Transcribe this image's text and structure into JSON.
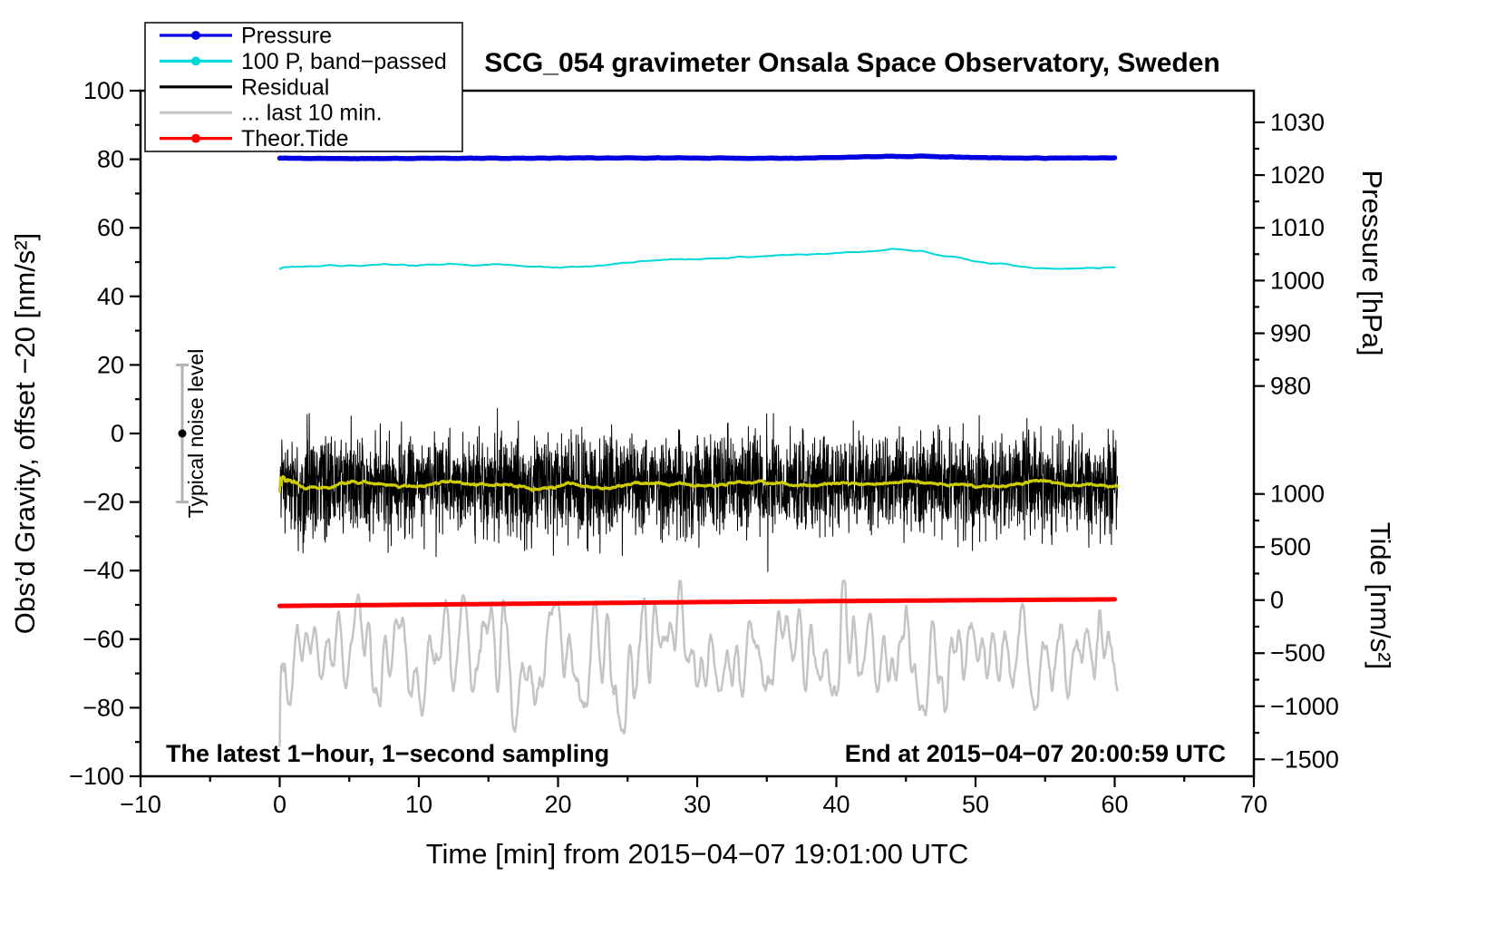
{
  "title": "SCG_054 gravimeter Onsala Space Observatory, Sweden",
  "legend": [
    {
      "label": "Pressure",
      "color": "#0000e0",
      "dot": true
    },
    {
      "label": "100 P, band−passed",
      "color": "#00d8d8",
      "dot": true
    },
    {
      "label": "Residual",
      "color": "#000000",
      "dot": false
    },
    {
      "label": "... last 10 min.",
      "color": "#c4c4c4",
      "dot": false
    },
    {
      "label": "Theor.Tide",
      "color": "#ff0000",
      "dot": true
    }
  ],
  "chart_data": {
    "type": "line",
    "title": "SCG_054 gravimeter Onsala Space Observatory, Sweden",
    "xlabel": "Time [min] from 2015−04−07 19:01:00 UTC",
    "annotations": {
      "bottom_left": "The latest 1−hour, 1−second sampling",
      "bottom_right": "End at 2015−04−07 20:00:59 UTC"
    },
    "noise_indicator": {
      "x": -7,
      "center": 0,
      "half_range": 20,
      "label": "Typical noise level"
    },
    "axes": {
      "x": {
        "min": -10,
        "max": 70,
        "major_tick": 10,
        "minor_tick": 5
      },
      "left_gravity": {
        "label": "Obs’d Gravity, offset −20 [nm/s²]",
        "min": -100,
        "max": 100,
        "major_tick": 20,
        "minor_tick": 10
      },
      "right_pressure": {
        "label": "Pressure [hPa]",
        "scale_min": 906,
        "scale_max": 1036,
        "tick_min": 980,
        "tick_max": 1030,
        "major_tick": 10,
        "minor_tick": 5
      },
      "right_tide": {
        "label": "Tide [nm/s²]",
        "scale_min": -1660,
        "scale_max": 4800,
        "tick_min": -1500,
        "tick_max": 1000,
        "major_tick": 500,
        "minor_tick": 250
      }
    },
    "draw_order": [
      "pressure_bp",
      "pressure",
      "residual_bp",
      "tide",
      "residual",
      "residual_smooth"
    ],
    "series": [
      {
        "id": "pressure",
        "name": "Pressure",
        "axis": "gravity",
        "color": "#0000e0",
        "width": 5.5,
        "jitter": 0.08,
        "seed": 11,
        "x": [
          0,
          5,
          10,
          15,
          20,
          25,
          30,
          35,
          40,
          43,
          46,
          50,
          55,
          60
        ],
        "y": [
          80.3,
          80.2,
          80.25,
          80.3,
          80.35,
          80.4,
          80.35,
          80.3,
          80.5,
          80.85,
          80.9,
          80.5,
          80.35,
          80.45
        ]
      },
      {
        "id": "pressure_bp",
        "name": "100 P, band−passed",
        "axis": "gravity",
        "color": "#00d8d8",
        "width": 2,
        "jitter": 0.15,
        "seed": 7,
        "x": [
          0,
          2,
          4,
          6,
          8,
          10,
          12,
          14,
          16,
          18,
          20,
          22,
          24,
          26,
          28,
          30,
          32,
          34,
          36,
          38,
          40,
          42,
          44,
          46,
          48,
          50,
          52,
          54,
          56,
          58,
          60
        ],
        "y": [
          48.5,
          48.8,
          49.0,
          49.0,
          49.2,
          49.0,
          49.3,
          49.2,
          49.3,
          48.6,
          48.4,
          48.6,
          49.3,
          50.3,
          50.8,
          50.9,
          51.2,
          51.5,
          52.0,
          52.3,
          52.5,
          53.0,
          53.8,
          53.3,
          51.7,
          50.2,
          49.3,
          48.2,
          48.0,
          48.3,
          48.5
        ]
      },
      {
        "id": "residual",
        "name": "Residual",
        "axis": "gravity",
        "color": "#000000",
        "width": 1,
        "synth": {
          "kind": "white",
          "n": 3600,
          "x_start": 0,
          "x_end": 60.2,
          "mean": -15,
          "std": 7,
          "seed": 1234,
          "spike_prob": 0.006,
          "spike_scale": 2.1,
          "clamp": [
            -43,
            13
          ]
        }
      },
      {
        "id": "residual_smooth",
        "name": "Residual smoothed",
        "axis": "gravity",
        "color": "#cccc00",
        "width": 3,
        "derived": "residual",
        "window": 150
      },
      {
        "id": "residual_bp",
        "name": "... last 10 min.",
        "axis": "gravity",
        "color": "#c4c4c4",
        "width": 2.5,
        "synth": {
          "kind": "smooth",
          "n": 1500,
          "x_start": 0,
          "x_end": 60.2,
          "mean": -65,
          "std": 8.5,
          "seed": 99,
          "smooth_window": 9,
          "clamp": [
            -93,
            -43
          ]
        }
      },
      {
        "id": "tide",
        "name": "Theor.Tide",
        "axis": "tide",
        "color": "#ff0000",
        "width": 5,
        "x": [
          0,
          10,
          20,
          30,
          40,
          50,
          60
        ],
        "y": [
          -55,
          -43,
          -31,
          -19,
          -9,
          -1,
          7
        ]
      }
    ]
  }
}
